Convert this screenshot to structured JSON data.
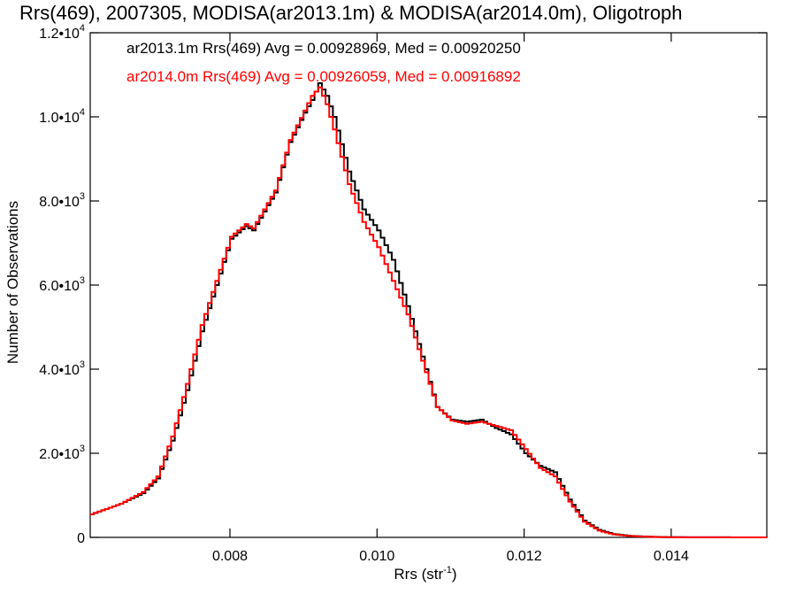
{
  "chart_data": {
    "type": "line",
    "title": "Rrs(469), 2007305, MODISA(ar2013.1m) & MODISA(ar2014.0m), Oligotroph",
    "xlabel": "Rrs (str",
    "xlabel_sup": "-1",
    "xlabel_close": ")",
    "ylabel": "Number of Observations",
    "xlim": [
      0.0061,
      0.0153
    ],
    "ylim": [
      0,
      12000
    ],
    "grid": false,
    "legend_position": "top-left",
    "x_ticks": [
      {
        "value": 0.008,
        "label": "0.008"
      },
      {
        "value": 0.01,
        "label": "0.010"
      },
      {
        "value": 0.012,
        "label": "0.012"
      },
      {
        "value": 0.014,
        "label": "0.014"
      }
    ],
    "y_ticks": [
      {
        "value": 0,
        "mantissa": "0",
        "exp": ""
      },
      {
        "value": 2000,
        "mantissa": "2.0•10",
        "exp": "3"
      },
      {
        "value": 4000,
        "mantissa": "4.0•10",
        "exp": "3"
      },
      {
        "value": 6000,
        "mantissa": "6.0•10",
        "exp": "3"
      },
      {
        "value": 8000,
        "mantissa": "8.0•10",
        "exp": "3"
      },
      {
        "value": 10000,
        "mantissa": "1.0•10",
        "exp": "4"
      },
      {
        "value": 12000,
        "mantissa": "1.2•10",
        "exp": "4"
      }
    ],
    "x": [
      0.0061,
      0.0065,
      0.0068,
      0.007,
      0.0072,
      0.0074,
      0.0076,
      0.0078,
      0.008,
      0.0082,
      0.0083,
      0.0084,
      0.0086,
      0.0088,
      0.009,
      0.0091,
      0.0092,
      0.0093,
      0.0094,
      0.0096,
      0.0098,
      0.01,
      0.0102,
      0.0104,
      0.0106,
      0.0108,
      0.011,
      0.0112,
      0.0114,
      0.0116,
      0.0118,
      0.012,
      0.0122,
      0.0124,
      0.0126,
      0.0128,
      0.013,
      0.0132,
      0.0134,
      0.0136,
      0.0138,
      0.014,
      0.0145,
      0.0153
    ],
    "series": [
      {
        "name": "ar2013.1m Rrs(469) Avg = 0.00928969, Med = 0.00920250",
        "color": "#000000",
        "values": [
          550,
          800,
          1050,
          1400,
          2300,
          3500,
          4900,
          6000,
          7100,
          7400,
          7300,
          7600,
          8200,
          9400,
          10100,
          10400,
          10800,
          10500,
          10000,
          8700,
          7800,
          7300,
          6600,
          5500,
          4300,
          3100,
          2800,
          2750,
          2800,
          2600,
          2450,
          2000,
          1700,
          1550,
          900,
          400,
          180,
          80,
          40,
          20,
          10,
          5,
          2,
          0
        ]
      },
      {
        "name": "ar2014.0m Rrs(469) Avg = 0.00926059, Med = 0.00916892",
        "color": "#ff0000",
        "values": [
          550,
          800,
          1080,
          1450,
          2400,
          3650,
          5050,
          6100,
          7150,
          7450,
          7350,
          7650,
          8250,
          9450,
          10150,
          10500,
          10700,
          10300,
          9700,
          8400,
          7500,
          6900,
          6100,
          5300,
          4200,
          3100,
          2780,
          2700,
          2750,
          2650,
          2550,
          2100,
          1650,
          1450,
          850,
          370,
          160,
          70,
          35,
          18,
          9,
          4,
          2,
          0
        ]
      }
    ]
  }
}
